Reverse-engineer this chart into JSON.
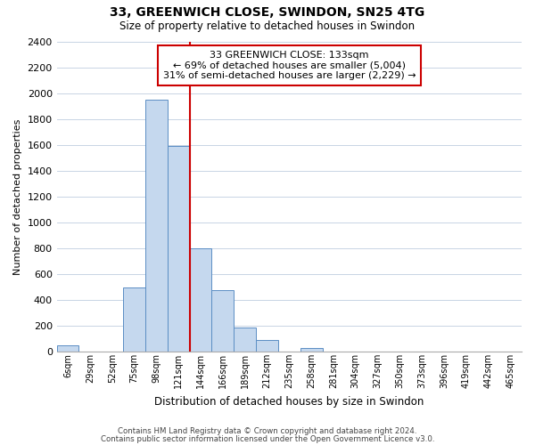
{
  "title": "33, GREENWICH CLOSE, SWINDON, SN25 4TG",
  "subtitle": "Size of property relative to detached houses in Swindon",
  "xlabel": "Distribution of detached houses by size in Swindon",
  "ylabel": "Number of detached properties",
  "bar_labels": [
    "6sqm",
    "29sqm",
    "52sqm",
    "75sqm",
    "98sqm",
    "121sqm",
    "144sqm",
    "166sqm",
    "189sqm",
    "212sqm",
    "235sqm",
    "258sqm",
    "281sqm",
    "304sqm",
    "327sqm",
    "350sqm",
    "373sqm",
    "396sqm",
    "419sqm",
    "442sqm",
    "465sqm"
  ],
  "bar_heights": [
    50,
    0,
    0,
    500,
    1950,
    1590,
    800,
    480,
    190,
    90,
    0,
    30,
    0,
    0,
    0,
    0,
    0,
    0,
    0,
    0,
    0
  ],
  "bar_color": "#c5d8ee",
  "bar_edge_color": "#5b8ec4",
  "vline_x": 5.5,
  "vline_color": "#cc0000",
  "ylim": [
    0,
    2400
  ],
  "yticks": [
    0,
    200,
    400,
    600,
    800,
    1000,
    1200,
    1400,
    1600,
    1800,
    2000,
    2200,
    2400
  ],
  "annotation_title": "33 GREENWICH CLOSE: 133sqm",
  "annotation_line1": "← 69% of detached houses are smaller (5,004)",
  "annotation_line2": "31% of semi-detached houses are larger (2,229) →",
  "annotation_box_color": "#ffffff",
  "annotation_box_edge": "#cc0000",
  "footer1": "Contains HM Land Registry data © Crown copyright and database right 2024.",
  "footer2": "Contains public sector information licensed under the Open Government Licence v3.0.",
  "background_color": "#ffffff",
  "grid_color": "#c8d4e4"
}
